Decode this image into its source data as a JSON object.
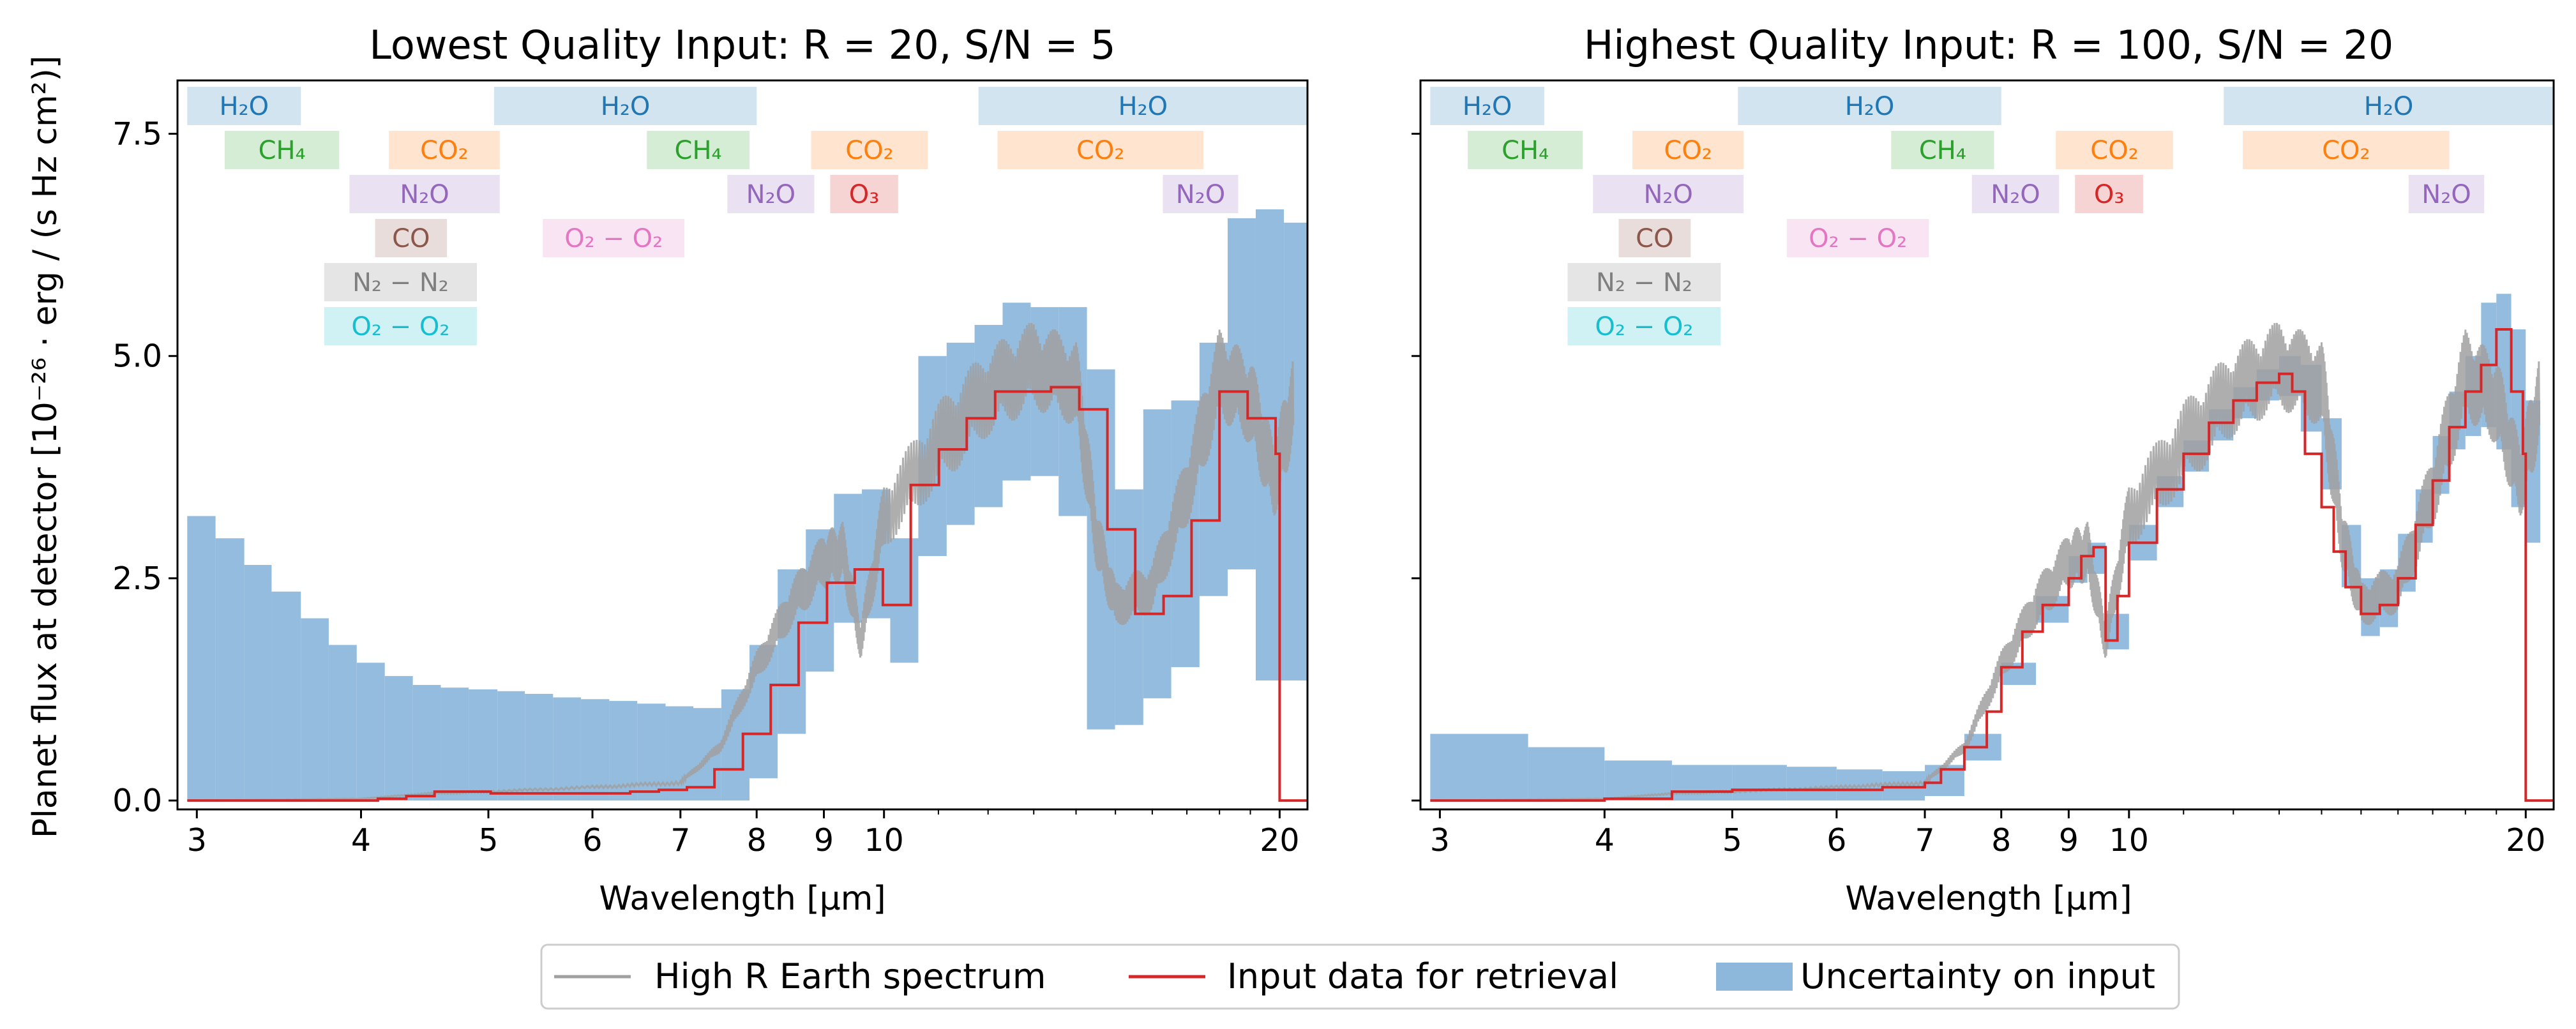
{
  "figure": {
    "ylabel": "Planet flux at detector [10⁻²⁶ · erg / (s Hz cm²)]",
    "legend": {
      "placement": "bottom-center",
      "items": [
        {
          "label": "High R Earth spectrum",
          "kind": "line",
          "color": "#a0a0a0"
        },
        {
          "label": "Input data for retrieval",
          "kind": "line",
          "color": "#d62728"
        },
        {
          "label": "Uncertainty on input",
          "kind": "patch",
          "color": "#8db8dc"
        }
      ]
    }
  },
  "colors": {
    "h2o": "#1f77b4",
    "ch4": "#2ca02c",
    "co2": "#ff7f0e",
    "n2o": "#9467bd",
    "co": "#8c564b",
    "o2o2": "#e377c2",
    "n2n2": "#7f7f7f",
    "o3": "#d62728",
    "o2o2b": "#17becf",
    "uncertainty": "#8db8dc",
    "input": "#d62728",
    "highR": "#a0a0a0"
  },
  "chart_data": [
    {
      "type": "line",
      "title": "Lowest Quality Input: R = 20, S/N = 5",
      "xlabel": "Wavelength [μm]",
      "xscale": "log",
      "xlim": [
        2.9,
        21.0
      ],
      "ylim": [
        -0.1,
        8.1
      ],
      "xticks": [
        3,
        4,
        5,
        6,
        7,
        8,
        9,
        10,
        20
      ],
      "yticks": [
        "0.0",
        "2.5",
        "5.0",
        "7.5"
      ],
      "series": [
        {
          "name": "High R Earth spectrum",
          "x": [
            3.0,
            4.0,
            4.5,
            5.0,
            6.0,
            7.0,
            7.5,
            8.0,
            8.5,
            9.0,
            9.3,
            9.6,
            10.0,
            11.0,
            12.0,
            13.0,
            14.0,
            14.5,
            15.0,
            16.0,
            17.0,
            18.0,
            19.0,
            19.8,
            20.5
          ],
          "y": [
            0.0,
            0.02,
            0.08,
            0.1,
            0.15,
            0.2,
            0.6,
            1.5,
            2.2,
            2.7,
            2.8,
            1.8,
            3.2,
            4.0,
            4.6,
            4.9,
            4.7,
            3.0,
            2.2,
            2.4,
            3.5,
            4.8,
            4.5,
            3.6,
            4.5
          ]
        },
        {
          "name": "Input data for retrieval",
          "x": [
            2.95,
            4.12,
            4.33,
            4.55,
            4.78,
            5.02,
            5.27,
            5.54,
            5.81,
            6.11,
            6.41,
            6.74,
            7.08,
            7.43,
            7.81,
            8.2,
            8.61,
            9.05,
            9.5,
            9.98,
            10.48,
            11.01,
            11.56,
            12.15,
            12.76,
            13.4,
            14.08,
            14.79,
            15.53,
            16.32,
            17.14,
            18.0,
            18.91,
            19.86
          ],
          "y": [
            0.0,
            0.02,
            0.05,
            0.1,
            0.1,
            0.08,
            0.08,
            0.08,
            0.08,
            0.08,
            0.1,
            0.12,
            0.15,
            0.35,
            0.75,
            1.3,
            2.0,
            2.45,
            2.6,
            2.2,
            3.55,
            3.95,
            4.3,
            4.6,
            4.6,
            4.65,
            4.4,
            3.05,
            2.1,
            2.3,
            3.15,
            4.6,
            4.3,
            3.9
          ]
        },
        {
          "name": "Uncertainty on input",
          "x": [
            2.95,
            3.1,
            3.26,
            3.42,
            3.6,
            3.78,
            3.97,
            4.17,
            4.38,
            4.6,
            4.83,
            5.08,
            5.33,
            5.6,
            5.88,
            6.18,
            6.49,
            6.82,
            7.16,
            7.52,
            7.9,
            8.3,
            8.72,
            9.16,
            9.62,
            10.11,
            10.62,
            11.16,
            11.72,
            12.31,
            12.93,
            13.58,
            14.27,
            14.99,
            15.75,
            16.54,
            17.38,
            18.26,
            19.18,
            20.15
          ],
          "lower": [
            0,
            0,
            0,
            0,
            0,
            0,
            0,
            0,
            0,
            0,
            0,
            0,
            0,
            0,
            0,
            0,
            0,
            0,
            0,
            0,
            0.25,
            0.75,
            1.45,
            2.0,
            2.05,
            1.55,
            2.75,
            3.1,
            3.3,
            3.6,
            3.65,
            3.2,
            0.8,
            0.85,
            1.15,
            1.5,
            2.3,
            2.6,
            1.35,
            1.35
          ],
          "upper": [
            3.2,
            2.95,
            2.65,
            2.35,
            2.05,
            1.75,
            1.55,
            1.4,
            1.3,
            1.27,
            1.25,
            1.23,
            1.2,
            1.16,
            1.14,
            1.12,
            1.09,
            1.06,
            1.04,
            1.25,
            1.75,
            2.6,
            3.05,
            3.45,
            3.5,
            2.95,
            5.0,
            5.15,
            5.35,
            5.6,
            5.55,
            5.55,
            4.85,
            3.5,
            4.4,
            4.5,
            5.15,
            6.55,
            6.65,
            6.5
          ]
        }
      ]
    },
    {
      "type": "line",
      "title": "Highest Quality Input: R = 100, S/N = 20",
      "xlabel": "Wavelength [μm]",
      "xscale": "log",
      "xlim": [
        2.9,
        21.0
      ],
      "ylim": [
        -0.1,
        8.1
      ],
      "xticks": [
        3,
        4,
        5,
        6,
        7,
        8,
        9,
        10,
        20
      ],
      "yticks": [
        "0.0",
        "2.5",
        "5.0",
        "7.5"
      ],
      "series": [
        {
          "name": "High R Earth spectrum",
          "x": [
            3.0,
            4.0,
            4.5,
            5.0,
            6.0,
            7.0,
            7.5,
            8.0,
            8.5,
            9.0,
            9.3,
            9.6,
            10.0,
            11.0,
            12.0,
            13.0,
            14.0,
            14.5,
            15.0,
            16.0,
            17.0,
            18.0,
            19.0,
            19.8,
            20.5
          ],
          "y": [
            0.0,
            0.02,
            0.08,
            0.1,
            0.15,
            0.2,
            0.6,
            1.5,
            2.2,
            2.7,
            2.8,
            1.8,
            3.2,
            4.0,
            4.6,
            4.9,
            4.7,
            3.0,
            2.2,
            2.4,
            3.5,
            4.8,
            4.5,
            3.6,
            4.5
          ]
        },
        {
          "name": "Input data for retrieval",
          "x": [
            2.95,
            4.0,
            4.5,
            5.0,
            5.5,
            6.0,
            6.5,
            7.0,
            7.2,
            7.5,
            7.8,
            8.0,
            8.3,
            8.6,
            9.0,
            9.2,
            9.4,
            9.6,
            9.8,
            10.0,
            10.5,
            11.0,
            11.5,
            12.0,
            12.5,
            13.0,
            13.3,
            13.6,
            14.0,
            14.3,
            14.6,
            15.0,
            15.5,
            16.0,
            16.5,
            17.0,
            17.5,
            18.0,
            18.5,
            19.0,
            19.5,
            19.9
          ],
          "y": [
            0.0,
            0.02,
            0.1,
            0.12,
            0.12,
            0.12,
            0.15,
            0.2,
            0.35,
            0.6,
            1.0,
            1.5,
            1.9,
            2.2,
            2.5,
            2.75,
            2.85,
            1.8,
            2.3,
            2.9,
            3.5,
            3.9,
            4.25,
            4.5,
            4.7,
            4.8,
            4.6,
            3.9,
            3.3,
            2.8,
            2.4,
            2.1,
            2.2,
            2.5,
            3.1,
            3.6,
            4.2,
            4.6,
            4.9,
            5.3,
            4.6,
            3.9
          ]
        },
        {
          "name": "Uncertainty on input",
          "x": [
            2.95,
            3.5,
            4.0,
            4.5,
            5.0,
            5.5,
            6.0,
            6.5,
            7.0,
            7.5,
            8.0,
            8.5,
            9.0,
            9.3,
            9.6,
            10.0,
            10.5,
            11.0,
            11.5,
            12.0,
            12.5,
            13.0,
            13.5,
            14.0,
            14.5,
            15.0,
            15.5,
            16.0,
            16.5,
            17.0,
            17.5,
            18.0,
            18.5,
            19.0,
            19.5,
            20.0
          ],
          "lower": [
            0,
            0,
            0,
            0,
            0,
            0,
            0,
            0,
            0.05,
            0.45,
            1.3,
            2.0,
            2.45,
            2.55,
            1.7,
            2.7,
            3.3,
            3.7,
            4.05,
            4.3,
            4.5,
            4.55,
            4.15,
            3.5,
            2.4,
            1.85,
            1.95,
            2.35,
            2.9,
            3.45,
            3.95,
            4.1,
            4.2,
            3.95,
            3.3,
            2.9
          ],
          "upper": [
            0.75,
            0.6,
            0.45,
            0.4,
            0.4,
            0.38,
            0.35,
            0.33,
            0.4,
            0.75,
            1.55,
            2.3,
            2.75,
            2.9,
            2.1,
            3.1,
            3.65,
            4.05,
            4.4,
            4.65,
            4.85,
            5.0,
            4.9,
            4.3,
            3.1,
            2.5,
            2.6,
            3.0,
            3.5,
            4.1,
            4.6,
            5.0,
            5.6,
            5.7,
            5.3,
            4.5
          ]
        }
      ]
    }
  ],
  "molecules": [
    {
      "label": "H₂O",
      "color": "h2o",
      "row": 0,
      "x0": 2.95,
      "x1": 3.6
    },
    {
      "label": "H₂O",
      "color": "h2o",
      "row": 0,
      "x0": 5.05,
      "x1": 8.0
    },
    {
      "label": "H₂O",
      "color": "h2o",
      "row": 0,
      "x0": 11.8,
      "x1": 21.0
    },
    {
      "label": "CH₄",
      "color": "ch4",
      "row": 1,
      "x0": 3.15,
      "x1": 3.85
    },
    {
      "label": "CO₂",
      "color": "co2",
      "row": 1,
      "x0": 4.2,
      "x1": 5.1
    },
    {
      "label": "CH₄",
      "color": "ch4",
      "row": 1,
      "x0": 6.6,
      "x1": 7.9
    },
    {
      "label": "CO₂",
      "color": "co2",
      "row": 1,
      "x0": 8.8,
      "x1": 10.8
    },
    {
      "label": "CO₂",
      "color": "co2",
      "row": 1,
      "x0": 12.2,
      "x1": 17.5
    },
    {
      "label": "N₂O",
      "color": "n2o",
      "row": 2,
      "x0": 3.92,
      "x1": 5.1
    },
    {
      "label": "N₂O",
      "color": "n2o",
      "row": 2,
      "x0": 7.6,
      "x1": 8.85
    },
    {
      "label": "O₃",
      "color": "o3",
      "row": 2,
      "x0": 9.1,
      "x1": 10.25
    },
    {
      "label": "N₂O",
      "color": "n2o",
      "row": 2,
      "x0": 16.3,
      "x1": 18.6
    },
    {
      "label": "CO",
      "color": "co",
      "row": 3,
      "x0": 4.1,
      "x1": 4.65
    },
    {
      "label": "O₂ − O₂",
      "color": "o2o2",
      "row": 3,
      "x0": 5.5,
      "x1": 7.05
    },
    {
      "label": "N₂ − N₂",
      "color": "n2n2",
      "row": 4,
      "x0": 3.75,
      "x1": 4.9
    },
    {
      "label": "O₂ − O₂",
      "color": "o2o2b",
      "row": 5,
      "x0": 3.75,
      "x1": 4.9
    }
  ]
}
